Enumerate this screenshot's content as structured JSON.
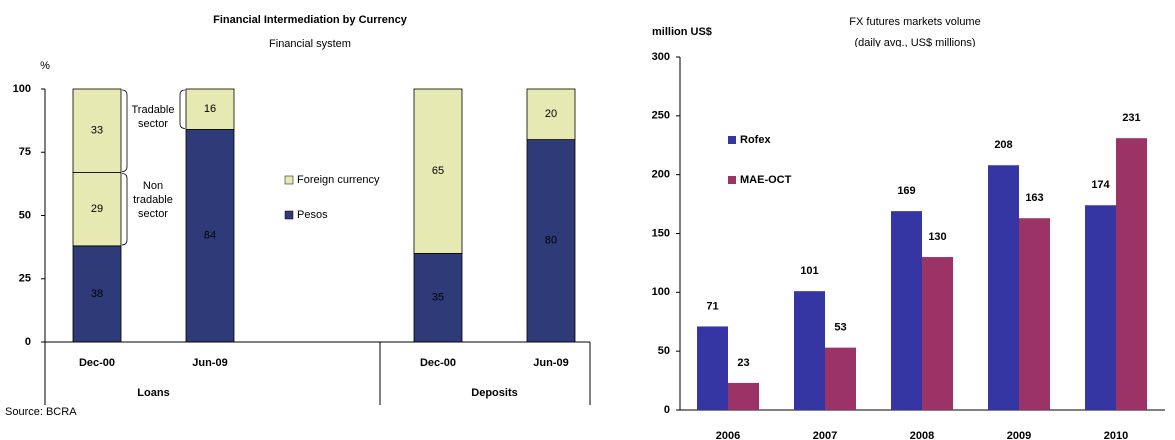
{
  "chart_data": [
    {
      "type": "stacked_bar",
      "title": "Financial Intermediation by Currency",
      "subtitle": "Financial system",
      "y_label": "%",
      "source": "Source: BCRA",
      "categories": [
        "Dec-00",
        "Jun-09",
        "Dec-00",
        "Jun-09"
      ],
      "groups": [
        {
          "label": "Loans",
          "span": [
            0,
            1
          ]
        },
        {
          "label": "Deposits",
          "span": [
            2,
            3
          ]
        }
      ],
      "series": [
        {
          "name": "Pesos",
          "color": "#2f3b78",
          "values": [
            38,
            84,
            35,
            80
          ]
        },
        {
          "name": "Foreign currency",
          "color": "#e6e9b2",
          "values": [
            29,
            16,
            65,
            20
          ]
        },
        {
          "color": "#e6e9b2",
          "values": [
            33,
            null,
            null,
            null
          ]
        }
      ],
      "annotations": [
        {
          "lines": [
            "Tradable",
            "sector"
          ]
        },
        {
          "lines": [
            "Non",
            "tradable",
            "sector"
          ]
        }
      ],
      "ylim": [
        0,
        100
      ],
      "yticks": [
        0,
        25,
        50,
        75,
        100
      ]
    },
    {
      "type": "bar",
      "title": "FX futures markets volume",
      "subtitle": "(daily avg., US$ millions)",
      "y_label": "million US$",
      "categories": [
        "2006",
        "2007",
        "2008",
        "2009",
        "2010"
      ],
      "series": [
        {
          "name": "Rofex",
          "color": "#3535a3",
          "values": [
            71,
            101,
            169,
            208,
            174
          ]
        },
        {
          "name": "MAE-OCT",
          "color": "#9b3366",
          "values": [
            23,
            53,
            130,
            163,
            231
          ]
        }
      ],
      "ylim": [
        0,
        300
      ],
      "yticks": [
        0,
        50,
        100,
        150,
        200,
        250,
        300
      ]
    }
  ]
}
